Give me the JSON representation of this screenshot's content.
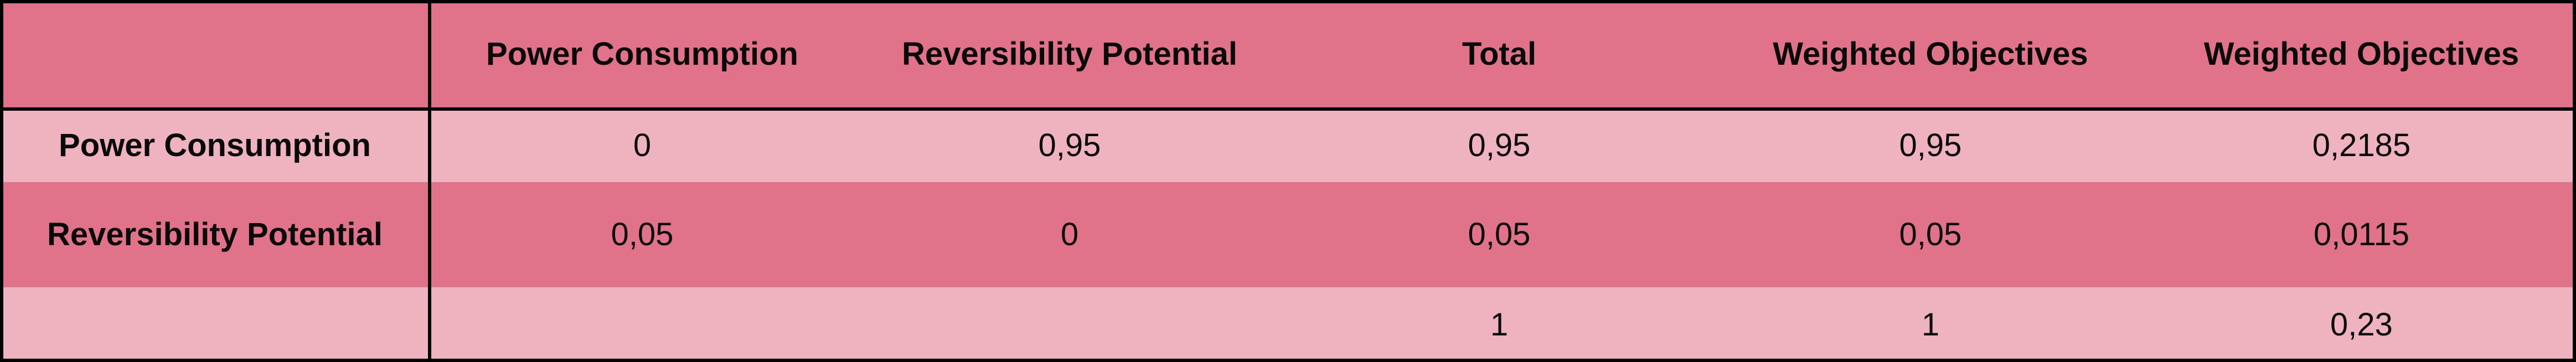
{
  "table": {
    "columns": [
      "",
      "Power Consumption",
      "Reversibility Potential",
      "Total",
      "Weighted Objectives",
      "Weighted Objectives"
    ],
    "rows": [
      {
        "label": "Power Consumption",
        "cells": [
          "0",
          "0,95",
          "0,95",
          "0,95",
          "0,2185"
        ]
      },
      {
        "label": "Reversibility Potential",
        "cells": [
          "0,05",
          "0",
          "0,05",
          "0,05",
          "0,0115"
        ]
      },
      {
        "label": "",
        "cells": [
          "",
          "",
          "1",
          "1",
          "0,23"
        ]
      }
    ]
  },
  "colors": {
    "dark_band": "#e07389",
    "light_band": "#efb2bf",
    "border": "#000000"
  }
}
